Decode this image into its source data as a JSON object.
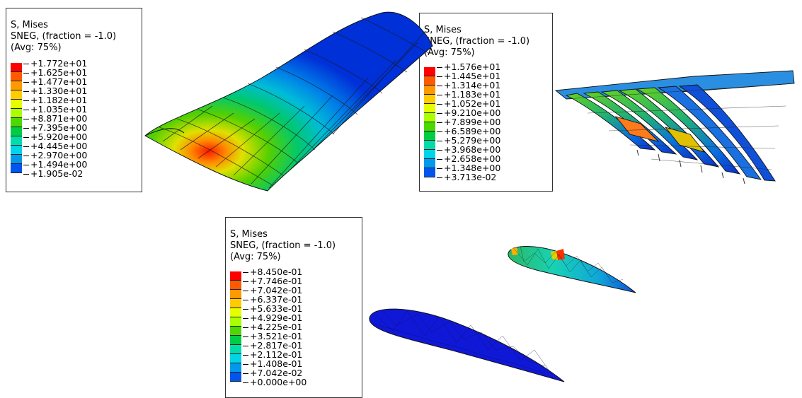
{
  "legends": [
    {
      "title": "S, Mises",
      "subtitle": "SNEG, (fraction = -1.0)",
      "avg": "(Avg: 75%)",
      "values": [
        "+1.772e+01",
        "+1.625e+01",
        "+1.477e+01",
        "+1.330e+01",
        "+1.182e+01",
        "+1.035e+01",
        "+8.871e+00",
        "+7.395e+00",
        "+5.920e+00",
        "+4.445e+00",
        "+2.970e+00",
        "+1.494e+00",
        "+1.905e-02"
      ]
    },
    {
      "title": "S, Mises",
      "subtitle": "SNEG, (fraction = -1.0)",
      "avg": "(Avg: 75%)",
      "values": [
        "+1.576e+01",
        "+1.445e+01",
        "+1.314e+01",
        "+1.183e+01",
        "+1.052e+01",
        "+9.210e+00",
        "+7.899e+00",
        "+6.589e+00",
        "+5.279e+00",
        "+3.968e+00",
        "+2.658e+00",
        "+1.348e+00",
        "+3.713e-02"
      ]
    },
    {
      "title": "S, Mises",
      "subtitle": "SNEG, (fraction = -1.0)",
      "avg": "(Avg: 75%)",
      "values": [
        "+8.450e-01",
        "+7.746e-01",
        "+7.042e-01",
        "+6.337e-01",
        "+5.633e-01",
        "+4.929e-01",
        "+4.225e-01",
        "+3.521e-01",
        "+2.817e-01",
        "+2.112e-01",
        "+1.408e-01",
        "+7.042e-02",
        "+0.000e+00"
      ]
    }
  ],
  "contour_colors": [
    "#ff0000",
    "#ff5a00",
    "#ff9900",
    "#ffcc00",
    "#e6ff00",
    "#aaff00",
    "#4cd800",
    "#00cc44",
    "#00ddaa",
    "#00d4e6",
    "#0099ee",
    "#0055ee",
    "#0000ee"
  ]
}
